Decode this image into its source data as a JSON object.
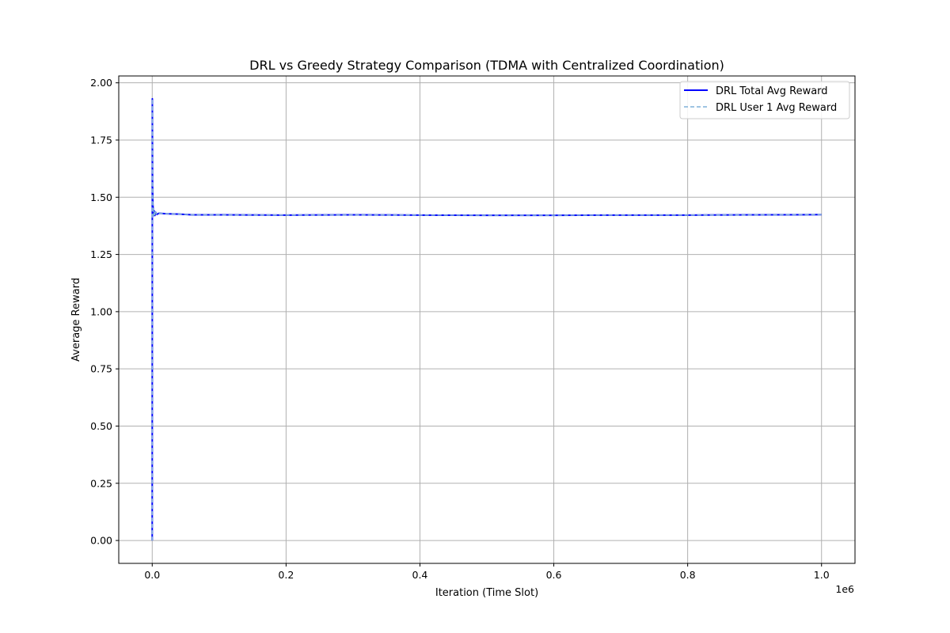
{
  "chart_data": {
    "type": "line",
    "title": "DRL vs Greedy Strategy Comparison (TDMA with Centralized Coordination)",
    "xlabel": "Iteration (Time Slot)",
    "ylabel": "Average Reward",
    "x_offset_label": "1e6",
    "xlim": [
      -50000,
      1050000
    ],
    "ylim": [
      -0.1,
      2.03
    ],
    "x_ticks": [
      0,
      200000,
      400000,
      600000,
      800000,
      1000000
    ],
    "x_tick_labels": [
      "0.0",
      "0.2",
      "0.4",
      "0.6",
      "0.8",
      "1.0"
    ],
    "y_ticks": [
      0,
      0.25,
      0.5,
      0.75,
      1.0,
      1.25,
      1.5,
      1.75,
      2.0
    ],
    "y_tick_labels": [
      "0.00",
      "0.25",
      "0.50",
      "0.75",
      "1.00",
      "1.25",
      "1.50",
      "1.75",
      "2.00"
    ],
    "grid": true,
    "legend_position": "top-right",
    "series": [
      {
        "name": "DRL Total Avg Reward",
        "color": "#0000ff",
        "style": "solid",
        "x": [
          1,
          200,
          500,
          1000,
          2000,
          3000,
          4000,
          5000,
          7000,
          10000,
          20000,
          40000,
          60000,
          100000,
          200000,
          300000,
          400000,
          500000,
          600000,
          700000,
          800000,
          900000,
          1000000
        ],
        "y": [
          0.0,
          1.93,
          1.55,
          1.47,
          1.42,
          1.44,
          1.42,
          1.435,
          1.425,
          1.43,
          1.428,
          1.426,
          1.423,
          1.423,
          1.422,
          1.423,
          1.422,
          1.421,
          1.421,
          1.422,
          1.422,
          1.423,
          1.424
        ]
      },
      {
        "name": "DRL User 1 Avg Reward",
        "color": "#7fb0d8",
        "style": "dashed",
        "x": [
          1,
          200,
          500,
          1000,
          2000,
          3000,
          4000,
          5000,
          7000,
          10000,
          20000,
          40000,
          60000,
          100000,
          200000,
          300000,
          400000,
          500000,
          600000,
          700000,
          800000,
          900000,
          1000000
        ],
        "y": [
          0.0,
          1.93,
          1.55,
          1.47,
          1.42,
          1.44,
          1.42,
          1.435,
          1.425,
          1.43,
          1.428,
          1.426,
          1.423,
          1.423,
          1.422,
          1.423,
          1.422,
          1.421,
          1.421,
          1.422,
          1.422,
          1.423,
          1.424
        ]
      }
    ]
  }
}
